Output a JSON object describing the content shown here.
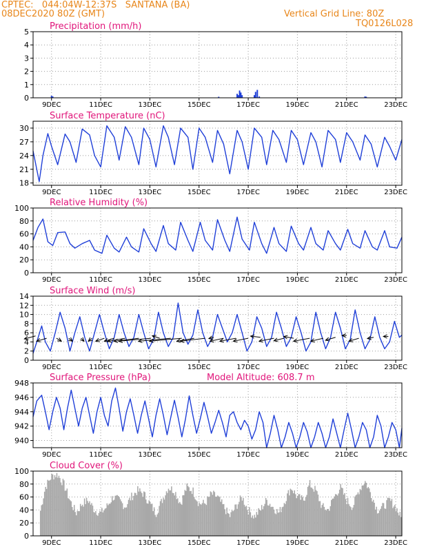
{
  "header": {
    "line1": "CPTEC:   044:04W-12:37S   SANTANA (BA)",
    "line2": "08DEC2020 80Z (GMT)",
    "right1": "Vertical Grid Line: 80Z",
    "right2": "TQ0126L028"
  },
  "colors": {
    "header": "#e8861a",
    "panel_title": "#e0157a",
    "series": "#1f3fd8",
    "cloud_bars": "#a8a8a8",
    "grid": "#9a9a9a"
  },
  "chart_data": [
    {
      "type": "bar",
      "title": "Precipitation (mm/h)",
      "ylim": [
        0,
        5
      ],
      "yticks": [
        "0",
        "1",
        "2",
        "3",
        "4",
        "5"
      ],
      "xticks": [
        "9DEC",
        "11DEC",
        "13DEC",
        "15DEC",
        "17DEC",
        "19DEC",
        "21DEC",
        "23DEC"
      ],
      "x_unit": "days since 08DEC2020 80Z",
      "points": [
        [
          0.75,
          0.15
        ],
        [
          0.8,
          0.1
        ],
        [
          7.55,
          0.08
        ],
        [
          8.3,
          0.3
        ],
        [
          8.35,
          0.2
        ],
        [
          8.4,
          0.55
        ],
        [
          8.45,
          0.4
        ],
        [
          8.5,
          0.2
        ],
        [
          9.0,
          0.2
        ],
        [
          9.05,
          0.45
        ],
        [
          9.12,
          0.6
        ],
        [
          9.2,
          0.1
        ],
        [
          13.5,
          0.1
        ],
        [
          13.55,
          0.08
        ]
      ]
    },
    {
      "type": "line",
      "title": "Surface Temperature (nC)",
      "ylim": [
        17.5,
        31.5
      ],
      "yticks": [
        "18",
        "21",
        "24",
        "27",
        "30"
      ],
      "xticks": [
        "9DEC",
        "11DEC",
        "13DEC",
        "15DEC",
        "17DEC",
        "19DEC",
        "21DEC",
        "23DEC"
      ],
      "x": [
        0,
        0.25,
        0.4,
        0.6,
        0.75,
        1.0,
        1.3,
        1.5,
        1.75,
        2.0,
        2.3,
        2.5,
        2.75,
        3.0,
        3.3,
        3.5,
        3.75,
        4.0,
        4.3,
        4.5,
        4.75,
        5.0,
        5.3,
        5.5,
        5.75,
        6.0,
        6.3,
        6.5,
        6.75,
        7.0,
        7.3,
        7.5,
        7.75,
        8.0,
        8.3,
        8.5,
        8.75,
        9.0,
        9.3,
        9.5,
        9.75,
        10.0,
        10.3,
        10.5,
        10.75,
        11.0,
        11.3,
        11.5,
        11.75,
        12.0,
        12.3,
        12.5,
        12.75,
        13.0,
        13.3,
        13.5,
        13.75,
        14.0,
        14.3,
        14.5,
        14.75,
        15.0
      ],
      "values": [
        25,
        18.3,
        24,
        28.8,
        26,
        22,
        28.7,
        27,
        22.5,
        29.8,
        28.5,
        24,
        21.5,
        30.5,
        28,
        23,
        30.3,
        28,
        22,
        30,
        27.5,
        21.5,
        30.5,
        28,
        22,
        30,
        28,
        21,
        30,
        28,
        22.5,
        29.5,
        26.5,
        20,
        29.5,
        27,
        21,
        30,
        28,
        22,
        29.5,
        27.5,
        22.5,
        29.5,
        27.5,
        22,
        29,
        27,
        21.5,
        29.5,
        27.5,
        22.5,
        29,
        27,
        23,
        28.5,
        26.5,
        21.5,
        28,
        26,
        23,
        27.5
      ],
      "color": "#1f3fd8"
    },
    {
      "type": "line",
      "title": "Relative Humidity (%)",
      "ylim": [
        0,
        100
      ],
      "yticks": [
        "0",
        "20",
        "40",
        "60",
        "80",
        "100"
      ],
      "xticks": [
        "9DEC",
        "11DEC",
        "13DEC",
        "15DEC",
        "17DEC",
        "19DEC",
        "21DEC",
        "23DEC"
      ],
      "x": [
        0,
        0.2,
        0.4,
        0.6,
        0.8,
        1.0,
        1.3,
        1.5,
        1.7,
        2.0,
        2.3,
        2.5,
        2.8,
        3.0,
        3.3,
        3.5,
        3.8,
        4.0,
        4.3,
        4.5,
        4.8,
        5.0,
        5.3,
        5.5,
        5.8,
        6.0,
        6.3,
        6.5,
        6.8,
        7.0,
        7.3,
        7.5,
        7.8,
        8.0,
        8.3,
        8.5,
        8.8,
        9.0,
        9.3,
        9.5,
        9.8,
        10.0,
        10.3,
        10.5,
        10.8,
        11.0,
        11.3,
        11.5,
        11.8,
        12.0,
        12.3,
        12.5,
        12.8,
        13.0,
        13.3,
        13.5,
        13.8,
        14.0,
        14.3,
        14.5,
        14.8,
        15.0
      ],
      "values": [
        50,
        70,
        83,
        48,
        42,
        62,
        63,
        45,
        38,
        45,
        50,
        35,
        30,
        58,
        38,
        32,
        55,
        40,
        32,
        68,
        45,
        33,
        73,
        45,
        35,
        78,
        50,
        33,
        78,
        50,
        35,
        82,
        50,
        33,
        86,
        52,
        35,
        78,
        45,
        30,
        70,
        45,
        33,
        72,
        45,
        35,
        70,
        45,
        35,
        65,
        45,
        35,
        67,
        45,
        38,
        65,
        40,
        35,
        65,
        40,
        38,
        55
      ],
      "color": "#1f3fd8"
    },
    {
      "type": "line",
      "title": "Surface Wind (m/s)",
      "ylim": [
        0,
        14
      ],
      "yticks": [
        "0",
        "2",
        "4",
        "6",
        "8",
        "10",
        "12",
        "14"
      ],
      "xticks": [
        "9DEC",
        "11DEC",
        "13DEC",
        "15DEC",
        "17DEC",
        "19DEC",
        "21DEC",
        "23DEC"
      ],
      "x": [
        0,
        0.15,
        0.35,
        0.5,
        0.7,
        0.9,
        1.1,
        1.3,
        1.5,
        1.7,
        1.9,
        2.1,
        2.3,
        2.5,
        2.7,
        2.9,
        3.1,
        3.3,
        3.5,
        3.7,
        3.9,
        4.1,
        4.3,
        4.5,
        4.7,
        4.9,
        5.1,
        5.3,
        5.5,
        5.7,
        5.9,
        6.1,
        6.3,
        6.5,
        6.7,
        6.9,
        7.1,
        7.3,
        7.5,
        7.7,
        7.9,
        8.1,
        8.3,
        8.5,
        8.7,
        8.9,
        9.1,
        9.3,
        9.5,
        9.7,
        9.9,
        10.1,
        10.3,
        10.5,
        10.7,
        10.9,
        11.1,
        11.3,
        11.5,
        11.7,
        11.9,
        12.1,
        12.3,
        12.5,
        12.7,
        12.9,
        13.1,
        13.3,
        13.5,
        13.7,
        13.9,
        14.1,
        14.3,
        14.5,
        14.7,
        14.9,
        15.0
      ],
      "values": [
        1.5,
        4,
        7.5,
        4,
        2,
        6,
        10.5,
        7,
        2,
        6,
        9.5,
        5,
        2,
        6,
        10,
        6,
        2.5,
        5,
        10,
        6,
        3,
        5,
        10,
        6,
        2.5,
        4.5,
        10.5,
        6,
        3,
        5,
        12.5,
        6,
        3.5,
        5.5,
        11,
        6,
        3,
        5,
        10,
        7,
        4,
        6,
        10,
        6,
        2,
        4,
        9.5,
        7,
        3,
        5,
        10.5,
        7,
        3,
        5,
        9.5,
        6,
        2,
        4,
        10.5,
        6,
        2.5,
        5,
        10.5,
        7,
        2.5,
        4.5,
        11,
        6,
        2.5,
        4.5,
        9.5,
        5,
        2.5,
        4,
        8.5,
        5,
        5.5
      ],
      "color": "#1f3fd8",
      "arrows": [
        [
          0.1,
          5.3,
          -0.45,
          -0.12
        ],
        [
          0.55,
          4.8,
          -0.4,
          -0.12
        ],
        [
          0.95,
          4.8,
          0.2,
          -0.12
        ],
        [
          1.45,
          4.8,
          0.15,
          -0.12
        ],
        [
          1.95,
          4.8,
          0.12,
          -0.12
        ],
        [
          2.4,
          4.8,
          -0.15,
          -0.12
        ],
        [
          2.9,
          4.8,
          -0.35,
          -0.12
        ],
        [
          3.3,
          4.8,
          -0.4,
          -0.12
        ],
        [
          3.75,
          4.8,
          -0.7,
          -0.12
        ],
        [
          4.3,
          4.8,
          -1.0,
          -0.12
        ],
        [
          4.8,
          4.8,
          -1.3,
          -0.12
        ],
        [
          5.15,
          4.8,
          -0.3,
          0.1
        ],
        [
          5.6,
          4.8,
          -1.3,
          -0.12
        ],
        [
          6.05,
          4.8,
          -1.3,
          -0.12
        ],
        [
          6.55,
          4.8,
          -0.7,
          -0.12
        ],
        [
          7.0,
          4.8,
          -1.0,
          -0.12
        ],
        [
          7.35,
          5.0,
          -0.2,
          -0.05
        ],
        [
          7.75,
          4.8,
          -0.55,
          -0.12
        ],
        [
          8.25,
          4.8,
          -0.65,
          -0.12
        ],
        [
          8.75,
          4.8,
          -0.6,
          -0.12
        ],
        [
          9.25,
          5.0,
          -0.4,
          0.05
        ],
        [
          9.8,
          4.8,
          -0.6,
          -0.12
        ],
        [
          10.2,
          4.8,
          -0.4,
          -0.1
        ],
        [
          10.6,
          4.8,
          -0.4,
          0.07
        ],
        [
          11.25,
          4.8,
          -0.65,
          -0.12
        ],
        [
          11.8,
          4.8,
          -0.5,
          -0.12
        ],
        [
          12.3,
          5.0,
          -0.4,
          -0.12
        ],
        [
          12.75,
          5.4,
          -0.18,
          0.0
        ],
        [
          13.25,
          4.8,
          -0.4,
          -0.12
        ],
        [
          13.85,
          5.0,
          -0.25,
          -0.05
        ],
        [
          14.45,
          5.2,
          -0.2,
          0.0
        ]
      ]
    },
    {
      "type": "line",
      "title": "Surface Pressure (hPa)",
      "annotation": "Model Altitude: 608.7 m",
      "ylim": [
        939,
        948
      ],
      "yticks": [
        "940",
        "942",
        "944",
        "946",
        "948"
      ],
      "xticks": [
        "9DEC",
        "11DEC",
        "13DEC",
        "15DEC",
        "17DEC",
        "19DEC",
        "21DEC",
        "23DEC"
      ],
      "x": [
        0,
        0.15,
        0.35,
        0.5,
        0.65,
        0.8,
        0.95,
        1.1,
        1.25,
        1.4,
        1.55,
        1.7,
        1.85,
        2.0,
        2.15,
        2.3,
        2.45,
        2.6,
        2.75,
        2.9,
        3.05,
        3.2,
        3.35,
        3.5,
        3.65,
        3.8,
        3.95,
        4.1,
        4.25,
        4.4,
        4.55,
        4.7,
        4.85,
        5.0,
        5.15,
        5.3,
        5.45,
        5.6,
        5.75,
        5.9,
        6.05,
        6.2,
        6.35,
        6.5,
        6.65,
        6.8,
        6.95,
        7.1,
        7.25,
        7.4,
        7.55,
        7.7,
        7.85,
        8.0,
        8.15,
        8.3,
        8.45,
        8.6,
        8.75,
        8.9,
        9.05,
        9.2,
        9.35,
        9.5,
        9.65,
        9.8,
        9.95,
        10.1,
        10.25,
        10.4,
        10.55,
        10.7,
        10.85,
        11.0,
        11.15,
        11.3,
        11.45,
        11.6,
        11.75,
        11.9,
        12.05,
        12.2,
        12.35,
        12.5,
        12.65,
        12.8,
        12.95,
        13.1,
        13.25,
        13.4,
        13.55,
        13.7,
        13.85,
        14.0,
        14.15,
        14.3,
        14.45,
        14.6,
        14.75,
        14.9,
        15.0
      ],
      "values": [
        943.3,
        945.5,
        946.3,
        944,
        941.5,
        944,
        946,
        944.5,
        941.5,
        944.5,
        947,
        944.5,
        942,
        944.5,
        946,
        943.5,
        941,
        944,
        946,
        943.5,
        942,
        945.5,
        947.3,
        944.5,
        941.3,
        944,
        945.8,
        943.5,
        941,
        943.5,
        945.5,
        943,
        940.5,
        943.5,
        945.8,
        943.5,
        940.8,
        943.2,
        945.6,
        943.2,
        940.5,
        943,
        946.2,
        943.5,
        941,
        943,
        945.3,
        943.3,
        941,
        942.5,
        944.2,
        942.5,
        940.5,
        943.5,
        944,
        942.5,
        941.5,
        942.8,
        942,
        940.2,
        941.5,
        944,
        942.5,
        938.5,
        941,
        943.5,
        941.5,
        938.5,
        940.5,
        942.5,
        941,
        938.5,
        940.5,
        942.5,
        941.2,
        938.5,
        940.5,
        942.5,
        941,
        939,
        940.5,
        943,
        941,
        938.5,
        941.5,
        943.8,
        941.5,
        939,
        940.5,
        942.5,
        941.5,
        939,
        940.5,
        943.5,
        942,
        939,
        940.5,
        942.5,
        941.5,
        938.8,
        941.7
      ],
      "color": "#1f3fd8"
    },
    {
      "type": "bar",
      "title": "Cloud Cover (%)",
      "ylim": [
        0,
        100
      ],
      "yticks": [
        "0",
        "20",
        "40",
        "60",
        "80",
        "100"
      ],
      "xticks": [
        "9DEC",
        "11DEC",
        "13DEC",
        "15DEC",
        "17DEC",
        "19DEC",
        "21DEC",
        "23DEC"
      ],
      "x_unit": "days since 08DEC2020 80Z",
      "values": [
        [
          0,
          5
        ],
        [
          0.25,
          30
        ],
        [
          0.5,
          75
        ],
        [
          0.75,
          92
        ],
        [
          1.0,
          95
        ],
        [
          1.25,
          80
        ],
        [
          1.5,
          55
        ],
        [
          1.75,
          35
        ],
        [
          2.0,
          50
        ],
        [
          2.25,
          55
        ],
        [
          2.5,
          40
        ],
        [
          2.75,
          35
        ],
        [
          3.0,
          45
        ],
        [
          3.25,
          60
        ],
        [
          3.5,
          55
        ],
        [
          3.75,
          45
        ],
        [
          4.0,
          60
        ],
        [
          4.25,
          70
        ],
        [
          4.5,
          65
        ],
        [
          4.75,
          50
        ],
        [
          5.0,
          35
        ],
        [
          5.25,
          55
        ],
        [
          5.5,
          75
        ],
        [
          5.75,
          70
        ],
        [
          6.0,
          50
        ],
        [
          6.25,
          75
        ],
        [
          6.5,
          70
        ],
        [
          6.75,
          50
        ],
        [
          7.0,
          50
        ],
        [
          7.25,
          65
        ],
        [
          7.5,
          60
        ],
        [
          7.75,
          45
        ],
        [
          8.0,
          30
        ],
        [
          8.25,
          45
        ],
        [
          8.5,
          60
        ],
        [
          8.75,
          40
        ],
        [
          9.0,
          30
        ],
        [
          9.25,
          40
        ],
        [
          9.5,
          55
        ],
        [
          9.75,
          45
        ],
        [
          10.0,
          35
        ],
        [
          10.25,
          55
        ],
        [
          10.5,
          75
        ],
        [
          10.75,
          60
        ],
        [
          11.0,
          55
        ],
        [
          11.25,
          80
        ],
        [
          11.5,
          70
        ],
        [
          11.75,
          45
        ],
        [
          12.0,
          40
        ],
        [
          12.25,
          60
        ],
        [
          12.5,
          75
        ],
        [
          12.75,
          55
        ],
        [
          13.0,
          45
        ],
        [
          13.25,
          70
        ],
        [
          13.5,
          85
        ],
        [
          13.75,
          65
        ],
        [
          14.0,
          40
        ],
        [
          14.25,
          45
        ],
        [
          14.5,
          55
        ],
        [
          14.75,
          45
        ],
        [
          15.0,
          25
        ]
      ]
    }
  ]
}
